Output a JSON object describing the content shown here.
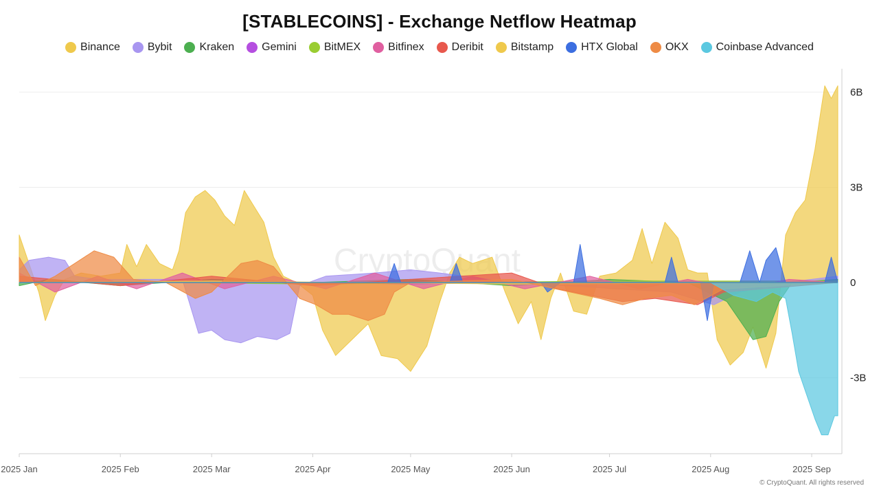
{
  "chart_data": {
    "type": "area",
    "title": "[STABLECOINS] - Exchange Netflow Heatmap",
    "x_ticks": [
      "2025 Jan",
      "2025 Feb",
      "2025 Mar",
      "2025 Apr",
      "2025 May",
      "2025 Jun",
      "2025 Jul",
      "2025 Aug",
      "2025 Sep"
    ],
    "y_ticks": [
      {
        "value": 6,
        "label": "6B"
      },
      {
        "value": 3,
        "label": "3B"
      },
      {
        "value": 0,
        "label": "0"
      },
      {
        "value": -3,
        "label": "-3B"
      }
    ],
    "x_range": [
      "2025-01-01",
      "2025-09-09"
    ],
    "y_unit": "B",
    "ylim": [
      -5.4,
      6.6
    ],
    "grid": true,
    "legend_position": "top",
    "watermark": "CryptoQuant",
    "copyright": "© CryptoQuant. All rights reserved",
    "series": [
      {
        "name": "Binance",
        "color": "#EFC94C",
        "points": [
          [
            "2025-01-01",
            1.5
          ],
          [
            "2025-01-04",
            0.6
          ],
          [
            "2025-01-07",
            -0.3
          ],
          [
            "2025-01-09",
            -1.2
          ],
          [
            "2025-01-12",
            -0.4
          ],
          [
            "2025-01-15",
            0.1
          ],
          [
            "2025-01-20",
            0.3
          ],
          [
            "2025-01-26",
            0.2
          ],
          [
            "2025-02-01",
            0.3
          ],
          [
            "2025-02-03",
            1.2
          ],
          [
            "2025-02-06",
            0.5
          ],
          [
            "2025-02-09",
            1.2
          ],
          [
            "2025-02-13",
            0.6
          ],
          [
            "2025-02-17",
            0.4
          ],
          [
            "2025-02-19",
            1.0
          ],
          [
            "2025-02-21",
            2.2
          ],
          [
            "2025-02-24",
            2.7
          ],
          [
            "2025-02-27",
            2.9
          ],
          [
            "2025-03-02",
            2.6
          ],
          [
            "2025-03-05",
            2.1
          ],
          [
            "2025-03-08",
            1.8
          ],
          [
            "2025-03-11",
            2.9
          ],
          [
            "2025-03-14",
            2.4
          ],
          [
            "2025-03-17",
            1.9
          ],
          [
            "2025-03-20",
            0.8
          ],
          [
            "2025-03-23",
            0.2
          ],
          [
            "2025-03-27",
            0.0
          ],
          [
            "2025-04-01",
            -0.4
          ],
          [
            "2025-04-04",
            -1.5
          ],
          [
            "2025-04-08",
            -2.3
          ],
          [
            "2025-04-13",
            -1.8
          ],
          [
            "2025-04-18",
            -1.3
          ],
          [
            "2025-04-22",
            -2.3
          ],
          [
            "2025-04-27",
            -2.4
          ],
          [
            "2025-05-01",
            -2.8
          ],
          [
            "2025-05-06",
            -2.0
          ],
          [
            "2025-05-10",
            -0.6
          ],
          [
            "2025-05-13",
            0.3
          ],
          [
            "2025-05-16",
            0.8
          ],
          [
            "2025-05-20",
            0.6
          ],
          [
            "2025-05-26",
            0.8
          ],
          [
            "2025-05-30",
            -0.3
          ],
          [
            "2025-06-03",
            -1.3
          ],
          [
            "2025-06-07",
            -0.6
          ],
          [
            "2025-06-10",
            -1.8
          ],
          [
            "2025-06-13",
            -0.5
          ],
          [
            "2025-06-16",
            0.3
          ],
          [
            "2025-06-20",
            -0.9
          ],
          [
            "2025-06-24",
            -1.0
          ],
          [
            "2025-06-28",
            0.2
          ],
          [
            "2025-07-03",
            0.3
          ],
          [
            "2025-07-08",
            0.7
          ],
          [
            "2025-07-11",
            1.7
          ],
          [
            "2025-07-14",
            0.6
          ],
          [
            "2025-07-18",
            1.9
          ],
          [
            "2025-07-22",
            1.4
          ],
          [
            "2025-07-25",
            0.4
          ],
          [
            "2025-07-28",
            0.3
          ],
          [
            "2025-07-31",
            0.3
          ],
          [
            "2025-08-03",
            -1.8
          ],
          [
            "2025-08-07",
            -2.6
          ],
          [
            "2025-08-11",
            -2.2
          ],
          [
            "2025-08-14",
            -1.4
          ],
          [
            "2025-08-18",
            -2.7
          ],
          [
            "2025-08-21",
            -1.6
          ],
          [
            "2025-08-24",
            1.5
          ],
          [
            "2025-08-27",
            2.2
          ],
          [
            "2025-08-30",
            2.6
          ],
          [
            "2025-09-02",
            4.2
          ],
          [
            "2025-09-05",
            6.2
          ],
          [
            "2025-09-07",
            5.8
          ],
          [
            "2025-09-09",
            6.2
          ]
        ]
      },
      {
        "name": "Bybit",
        "color": "#A896F0",
        "points": [
          [
            "2025-01-01",
            0.4
          ],
          [
            "2025-01-04",
            0.7
          ],
          [
            "2025-01-10",
            0.8
          ],
          [
            "2025-01-15",
            0.7
          ],
          [
            "2025-01-18",
            0.2
          ],
          [
            "2025-01-25",
            0.1
          ],
          [
            "2025-02-03",
            0.1
          ],
          [
            "2025-02-20",
            0.1
          ],
          [
            "2025-02-25",
            -1.6
          ],
          [
            "2025-03-01",
            -1.5
          ],
          [
            "2025-03-05",
            -1.8
          ],
          [
            "2025-03-10",
            -1.9
          ],
          [
            "2025-03-15",
            -1.7
          ],
          [
            "2025-03-21",
            -1.8
          ],
          [
            "2025-03-25",
            -1.6
          ],
          [
            "2025-03-28",
            -0.1
          ],
          [
            "2025-04-05",
            0.2
          ],
          [
            "2025-04-20",
            0.3
          ],
          [
            "2025-05-01",
            0.4
          ],
          [
            "2025-05-10",
            0.3
          ],
          [
            "2025-06-01",
            0.0
          ],
          [
            "2025-07-20",
            -0.3
          ],
          [
            "2025-08-02",
            -0.7
          ],
          [
            "2025-08-10",
            -0.3
          ],
          [
            "2025-08-24",
            0.0
          ],
          [
            "2025-09-09",
            0.2
          ]
        ]
      },
      {
        "name": "Kraken",
        "color": "#4CAF50",
        "points": [
          [
            "2025-01-01",
            -0.1
          ],
          [
            "2025-01-10",
            0.1
          ],
          [
            "2025-02-01",
            -0.1
          ],
          [
            "2025-03-01",
            0.1
          ],
          [
            "2025-04-01",
            0.0
          ],
          [
            "2025-05-01",
            0.1
          ],
          [
            "2025-06-01",
            -0.1
          ],
          [
            "2025-07-01",
            0.1
          ],
          [
            "2025-07-25",
            0.0
          ],
          [
            "2025-08-02",
            -0.4
          ],
          [
            "2025-08-06",
            -0.6
          ],
          [
            "2025-08-10",
            -1.2
          ],
          [
            "2025-08-14",
            -1.8
          ],
          [
            "2025-08-18",
            -1.7
          ],
          [
            "2025-08-22",
            -0.6
          ],
          [
            "2025-08-26",
            0.0
          ],
          [
            "2025-09-09",
            0.1
          ]
        ]
      },
      {
        "name": "Gemini",
        "color": "#B54EE0",
        "points": [
          [
            "2025-01-01",
            0.0
          ],
          [
            "2025-03-01",
            0.05
          ],
          [
            "2025-05-01",
            -0.05
          ],
          [
            "2025-07-01",
            0.05
          ],
          [
            "2025-09-09",
            0.0
          ]
        ]
      },
      {
        "name": "BitMEX",
        "color": "#9ACD32",
        "points": [
          [
            "2025-01-01",
            0.05
          ],
          [
            "2025-04-01",
            -0.05
          ],
          [
            "2025-07-01",
            0.05
          ],
          [
            "2025-09-09",
            0.05
          ]
        ]
      },
      {
        "name": "Bitfinex",
        "color": "#E05FA0",
        "points": [
          [
            "2025-01-01",
            0.3
          ],
          [
            "2025-01-12",
            -0.3
          ],
          [
            "2025-01-25",
            0.2
          ],
          [
            "2025-02-06",
            -0.2
          ],
          [
            "2025-02-20",
            0.3
          ],
          [
            "2025-03-05",
            -0.2
          ],
          [
            "2025-03-20",
            0.2
          ],
          [
            "2025-04-05",
            -0.2
          ],
          [
            "2025-04-20",
            0.3
          ],
          [
            "2025-05-05",
            -0.2
          ],
          [
            "2025-05-20",
            0.2
          ],
          [
            "2025-06-05",
            -0.2
          ],
          [
            "2025-06-25",
            0.2
          ],
          [
            "2025-07-10",
            -0.2
          ],
          [
            "2025-07-25",
            0.1
          ],
          [
            "2025-08-10",
            -0.2
          ],
          [
            "2025-08-25",
            0.1
          ],
          [
            "2025-09-09",
            0.0
          ]
        ]
      },
      {
        "name": "Deribit",
        "color": "#E8584D",
        "points": [
          [
            "2025-01-01",
            0.2
          ],
          [
            "2025-02-01",
            -0.1
          ],
          [
            "2025-03-01",
            0.2
          ],
          [
            "2025-04-01",
            -0.1
          ],
          [
            "2025-05-01",
            0.1
          ],
          [
            "2025-06-01",
            0.3
          ],
          [
            "2025-06-15",
            -0.2
          ],
          [
            "2025-07-05",
            -0.6
          ],
          [
            "2025-07-15",
            -0.5
          ],
          [
            "2025-07-28",
            -0.7
          ],
          [
            "2025-08-05",
            -0.3
          ],
          [
            "2025-09-09",
            0.0
          ]
        ]
      },
      {
        "name": "Bitstamp",
        "color": "#EFC94C",
        "points": [
          [
            "2025-01-01",
            0.0
          ],
          [
            "2025-03-01",
            0.05
          ],
          [
            "2025-06-01",
            -0.05
          ],
          [
            "2025-09-09",
            0.0
          ]
        ]
      },
      {
        "name": "HTX Global",
        "color": "#3C6EE0",
        "points": [
          [
            "2025-01-01",
            0.0
          ],
          [
            "2025-04-24",
            0.0
          ],
          [
            "2025-04-26",
            0.6
          ],
          [
            "2025-04-28",
            0.0
          ],
          [
            "2025-05-13",
            0.0
          ],
          [
            "2025-05-15",
            0.6
          ],
          [
            "2025-05-17",
            0.0
          ],
          [
            "2025-06-10",
            0.0
          ],
          [
            "2025-06-12",
            -0.3
          ],
          [
            "2025-06-16",
            0.0
          ],
          [
            "2025-06-20",
            0.0
          ],
          [
            "2025-06-22",
            1.2
          ],
          [
            "2025-06-24",
            0.0
          ],
          [
            "2025-07-18",
            0.0
          ],
          [
            "2025-07-20",
            0.8
          ],
          [
            "2025-07-22",
            0.0
          ],
          [
            "2025-07-29",
            0.0
          ],
          [
            "2025-07-31",
            -1.2
          ],
          [
            "2025-08-02",
            0.0
          ],
          [
            "2025-08-10",
            0.0
          ],
          [
            "2025-08-13",
            1.0
          ],
          [
            "2025-08-16",
            0.0
          ],
          [
            "2025-08-18",
            0.7
          ],
          [
            "2025-08-21",
            1.1
          ],
          [
            "2025-08-24",
            0.0
          ],
          [
            "2025-09-05",
            0.0
          ],
          [
            "2025-09-07",
            0.8
          ],
          [
            "2025-09-09",
            0.0
          ]
        ]
      },
      {
        "name": "OKX",
        "color": "#EE8B45",
        "points": [
          [
            "2025-01-01",
            0.8
          ],
          [
            "2025-01-06",
            -0.1
          ],
          [
            "2025-01-12",
            0.2
          ],
          [
            "2025-01-18",
            0.6
          ],
          [
            "2025-01-24",
            1.0
          ],
          [
            "2025-01-30",
            0.8
          ],
          [
            "2025-02-05",
            0.1
          ],
          [
            "2025-02-15",
            0.0
          ],
          [
            "2025-02-24",
            -0.5
          ],
          [
            "2025-03-01",
            -0.3
          ],
          [
            "2025-03-05",
            0.1
          ],
          [
            "2025-03-10",
            0.6
          ],
          [
            "2025-03-15",
            0.7
          ],
          [
            "2025-03-20",
            0.5
          ],
          [
            "2025-03-24",
            0.0
          ],
          [
            "2025-03-28",
            -0.5
          ],
          [
            "2025-04-02",
            -0.7
          ],
          [
            "2025-04-07",
            -1.0
          ],
          [
            "2025-04-12",
            -1.0
          ],
          [
            "2025-04-18",
            -1.2
          ],
          [
            "2025-04-23",
            -1.0
          ],
          [
            "2025-04-26",
            -0.3
          ],
          [
            "2025-05-01",
            0.0
          ],
          [
            "2025-06-01",
            0.1
          ],
          [
            "2025-06-28",
            -0.5
          ],
          [
            "2025-07-05",
            -0.7
          ],
          [
            "2025-07-12",
            -0.5
          ],
          [
            "2025-07-20",
            -0.4
          ],
          [
            "2025-07-27",
            -0.7
          ],
          [
            "2025-08-05",
            -0.2
          ],
          [
            "2025-09-09",
            0.0
          ]
        ]
      },
      {
        "name": "Coinbase Advanced",
        "color": "#5BC8E0",
        "points": [
          [
            "2025-01-01",
            0.0
          ],
          [
            "2025-08-01",
            0.0
          ],
          [
            "2025-08-08",
            -0.4
          ],
          [
            "2025-08-15",
            -0.6
          ],
          [
            "2025-08-20",
            -0.3
          ],
          [
            "2025-08-24",
            -0.5
          ],
          [
            "2025-08-26",
            -1.6
          ],
          [
            "2025-08-28",
            -2.8
          ],
          [
            "2025-08-30",
            -3.4
          ],
          [
            "2025-09-02",
            -4.3
          ],
          [
            "2025-09-04",
            -4.8
          ],
          [
            "2025-09-06",
            -4.8
          ],
          [
            "2025-09-08",
            -4.2
          ],
          [
            "2025-09-09",
            -4.2
          ]
        ]
      }
    ]
  }
}
